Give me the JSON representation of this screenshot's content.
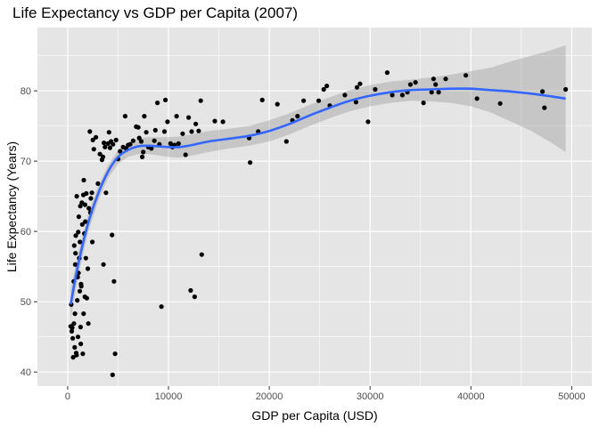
{
  "chart_data": {
    "type": "scatter",
    "title": "Life Expectancy vs GDP per Capita (2007)",
    "xlabel": "GDP per Capita (USD)",
    "ylabel": "Life Expectancy (Years)",
    "xlim": [
      -3000,
      52000
    ],
    "ylim": [
      38,
      89
    ],
    "xticks": [
      0,
      10000,
      20000,
      30000,
      40000,
      50000
    ],
    "xtick_labels": [
      "0",
      "10000",
      "20000",
      "30000",
      "40000",
      "50000"
    ],
    "yticks": [
      40,
      50,
      60,
      70,
      80
    ],
    "ytick_labels": [
      "40",
      "50",
      "60",
      "70",
      "80"
    ],
    "grid": true,
    "legend": "none",
    "colors": {
      "panel": "#e5e5e5",
      "grid_major": "#ffffff",
      "points": "#000000",
      "smooth_line": "#3366ff",
      "confidence_band": "#999999"
    },
    "points": [
      [
        300,
        46.5
      ],
      [
        350,
        49.6
      ],
      [
        400,
        45.8
      ],
      [
        450,
        46.3
      ],
      [
        500,
        44.8
      ],
      [
        550,
        42.1
      ],
      [
        600,
        52.9
      ],
      [
        620,
        46.9
      ],
      [
        650,
        58.0
      ],
      [
        700,
        43.5
      ],
      [
        720,
        48.3
      ],
      [
        750,
        55.3
      ],
      [
        780,
        56.9
      ],
      [
        800,
        59.4
      ],
      [
        850,
        42.7
      ],
      [
        880,
        42.4
      ],
      [
        900,
        65.0
      ],
      [
        950,
        50.2
      ],
      [
        1000,
        53.5
      ],
      [
        1020,
        45.0
      ],
      [
        1050,
        59.9
      ],
      [
        1080,
        54.1
      ],
      [
        1100,
        62.1
      ],
      [
        1150,
        56.2
      ],
      [
        1200,
        51.5
      ],
      [
        1220,
        58.5
      ],
      [
        1250,
        63.6
      ],
      [
        1280,
        46.4
      ],
      [
        1300,
        44.0
      ],
      [
        1320,
        52.5
      ],
      [
        1350,
        52.2
      ],
      [
        1400,
        64.1
      ],
      [
        1450,
        61.0
      ],
      [
        1500,
        42.6
      ],
      [
        1550,
        65.2
      ],
      [
        1580,
        48.3
      ],
      [
        1600,
        67.3
      ],
      [
        1650,
        59.7
      ],
      [
        1700,
        50.7
      ],
      [
        1720,
        63.8
      ],
      [
        1750,
        61.4
      ],
      [
        1800,
        56.2
      ],
      [
        1850,
        65.4
      ],
      [
        1900,
        50.5
      ],
      [
        2000,
        54.7
      ],
      [
        2050,
        46.9
      ],
      [
        2100,
        63.3
      ],
      [
        2200,
        74.2
      ],
      [
        2250,
        62.7
      ],
      [
        2300,
        64.7
      ],
      [
        2400,
        65.5
      ],
      [
        2450,
        58.5
      ],
      [
        2500,
        73.0
      ],
      [
        2600,
        71.7
      ],
      [
        2800,
        73.4
      ],
      [
        3000,
        66.8
      ],
      [
        3200,
        71.0
      ],
      [
        3400,
        70.2
      ],
      [
        3500,
        70.6
      ],
      [
        3550,
        55.3
      ],
      [
        3600,
        72.6
      ],
      [
        3700,
        72.0
      ],
      [
        3800,
        65.5
      ],
      [
        4000,
        72.5
      ],
      [
        4100,
        74.1
      ],
      [
        4200,
        71.9
      ],
      [
        4300,
        72.8
      ],
      [
        4400,
        59.5
      ],
      [
        4450,
        39.6
      ],
      [
        4500,
        72.4
      ],
      [
        4600,
        52.9
      ],
      [
        4700,
        42.6
      ],
      [
        4800,
        73.0
      ],
      [
        5000,
        70.3
      ],
      [
        5200,
        71.4
      ],
      [
        5500,
        72.0
      ],
      [
        5700,
        76.4
      ],
      [
        5800,
        71.8
      ],
      [
        6000,
        72.3
      ],
      [
        6200,
        72.4
      ],
      [
        6500,
        72.9
      ],
      [
        6800,
        74.9
      ],
      [
        7000,
        74.8
      ],
      [
        7100,
        73.3
      ],
      [
        7300,
        72.8
      ],
      [
        7400,
        70.6
      ],
      [
        7500,
        71.3
      ],
      [
        7600,
        76.4
      ],
      [
        7800,
        74.1
      ],
      [
        8000,
        72.0
      ],
      [
        8300,
        71.8
      ],
      [
        8600,
        72.9
      ],
      [
        8700,
        74.4
      ],
      [
        8900,
        78.3
      ],
      [
        9100,
        72.4
      ],
      [
        9300,
        49.3
      ],
      [
        9600,
        74.2
      ],
      [
        9700,
        78.7
      ],
      [
        9900,
        75.6
      ],
      [
        10200,
        72.5
      ],
      [
        10400,
        72.0
      ],
      [
        10600,
        72.3
      ],
      [
        10800,
        76.4
      ],
      [
        11000,
        72.5
      ],
      [
        11400,
        73.9
      ],
      [
        11700,
        70.9
      ],
      [
        12000,
        76.2
      ],
      [
        12200,
        51.6
      ],
      [
        12300,
        74.2
      ],
      [
        12600,
        50.7
      ],
      [
        12700,
        75.3
      ],
      [
        13000,
        74.3
      ],
      [
        13200,
        78.6
      ],
      [
        13300,
        56.7
      ],
      [
        14600,
        75.7
      ],
      [
        15400,
        75.6
      ],
      [
        18000,
        73.3
      ],
      [
        18100,
        69.8
      ],
      [
        18900,
        74.2
      ],
      [
        19300,
        78.7
      ],
      [
        20800,
        78.1
      ],
      [
        21700,
        72.8
      ],
      [
        22300,
        75.8
      ],
      [
        22800,
        76.4
      ],
      [
        23400,
        78.6
      ],
      [
        24900,
        78.6
      ],
      [
        25400,
        80.2
      ],
      [
        25700,
        80.7
      ],
      [
        26000,
        77.9
      ],
      [
        27500,
        79.4
      ],
      [
        28600,
        78.4
      ],
      [
        28700,
        80.5
      ],
      [
        29000,
        81.0
      ],
      [
        29800,
        75.6
      ],
      [
        30500,
        80.2
      ],
      [
        31700,
        82.6
      ],
      [
        32200,
        79.4
      ],
      [
        33200,
        79.4
      ],
      [
        33700,
        79.8
      ],
      [
        34000,
        80.9
      ],
      [
        34500,
        81.2
      ],
      [
        35300,
        78.3
      ],
      [
        36100,
        79.8
      ],
      [
        36300,
        81.7
      ],
      [
        36500,
        80.9
      ],
      [
        36800,
        79.8
      ],
      [
        37500,
        81.7
      ],
      [
        39500,
        82.2
      ],
      [
        40600,
        78.9
      ],
      [
        42900,
        78.2
      ],
      [
        47100,
        79.9
      ],
      [
        47300,
        77.6
      ],
      [
        49400,
        80.2
      ]
    ],
    "smooth": {
      "x": [
        300,
        1000,
        2000,
        3000,
        4000,
        5000,
        6000,
        7000,
        8000,
        9000,
        10000,
        11000,
        12000,
        13000,
        14000,
        16000,
        18000,
        20000,
        22000,
        24000,
        26000,
        28000,
        30000,
        32000,
        34000,
        36000,
        38000,
        40000,
        42000,
        44000,
        46000,
        48000,
        49400
      ],
      "y": [
        49.6,
        55.0,
        61.0,
        65.3,
        68.5,
        70.6,
        71.6,
        72.1,
        72.2,
        72.1,
        72.0,
        72.0,
        72.2,
        72.5,
        72.8,
        73.2,
        73.6,
        74.3,
        75.3,
        76.5,
        77.6,
        78.6,
        79.3,
        79.8,
        80.1,
        80.2,
        80.3,
        80.3,
        80.1,
        79.9,
        79.6,
        79.2,
        78.9
      ],
      "lower": [
        47.5,
        53.3,
        59.7,
        64.2,
        67.6,
        69.6,
        70.6,
        71.0,
        71.0,
        70.8,
        70.6,
        70.5,
        70.7,
        71.0,
        71.3,
        71.8,
        72.2,
        72.8,
        73.8,
        75.0,
        76.1,
        77.1,
        77.8,
        78.3,
        78.6,
        78.5,
        78.3,
        77.8,
        76.9,
        75.6,
        74.3,
        72.6,
        71.3
      ],
      "upper": [
        51.7,
        56.7,
        62.3,
        66.4,
        69.4,
        71.6,
        72.6,
        73.2,
        73.4,
        73.4,
        73.4,
        73.5,
        73.7,
        74.0,
        74.3,
        74.6,
        75.0,
        75.8,
        76.8,
        78.0,
        79.1,
        80.1,
        80.8,
        81.3,
        81.6,
        81.9,
        82.3,
        82.8,
        83.3,
        84.2,
        85.0,
        85.8,
        86.5
      ]
    }
  }
}
